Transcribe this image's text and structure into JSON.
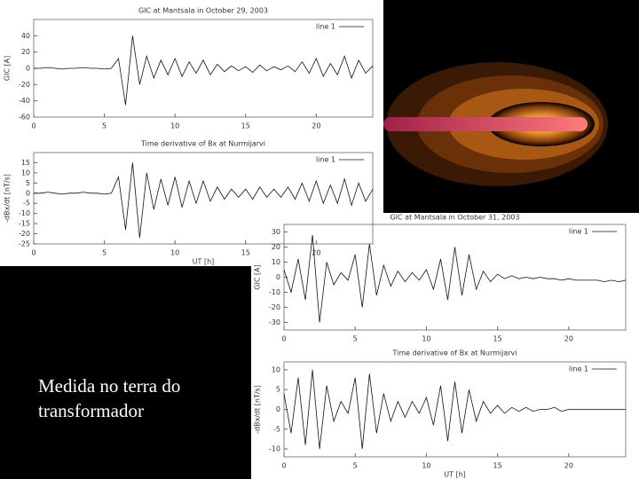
{
  "chart_data": [
    {
      "type": "line",
      "title": "GIC at Mantsala in October 29, 2003",
      "y_label": "GIC [A]",
      "x": [
        0,
        0.5,
        1,
        1.5,
        2,
        2.5,
        3,
        3.5,
        4,
        4.5,
        5,
        5.5,
        6,
        6.5,
        7,
        7.5,
        8,
        8.5,
        9,
        9.5,
        10,
        10.5,
        11,
        11.5,
        12,
        12.5,
        13,
        13.5,
        14,
        14.5,
        15,
        15.5,
        16,
        16.5,
        17,
        17.5,
        18,
        18.5,
        19,
        19.5,
        20,
        20.5,
        21,
        21.5,
        22,
        22.5,
        23,
        23.5,
        24
      ],
      "series": [
        {
          "name": "line 1",
          "color": "#111111",
          "values": [
            0,
            0,
            1,
            0,
            -1,
            0,
            0,
            1,
            0,
            0,
            -1,
            0,
            12,
            -45,
            40,
            -20,
            15,
            -12,
            10,
            -8,
            12,
            -10,
            8,
            -6,
            10,
            -8,
            5,
            -4,
            3,
            -3,
            2,
            -5,
            4,
            -3,
            2,
            -2,
            3,
            -4,
            8,
            -6,
            12,
            -10,
            6,
            -8,
            15,
            -12,
            10,
            -6,
            3
          ]
        }
      ],
      "xlim": [
        0,
        24
      ],
      "xticks": [
        0,
        5,
        10,
        15,
        20
      ],
      "ylim": [
        -60,
        60
      ],
      "yticks": [
        40,
        20,
        0,
        -20,
        -40,
        -60
      ],
      "legend": "upper right"
    },
    {
      "type": "line",
      "title": "Time derivative of Bx at Nurmijarvi",
      "y_label": "-dBx/dt [nT/s]",
      "x_label": "UT [h]",
      "x": [
        0,
        0.5,
        1,
        1.5,
        2,
        2.5,
        3,
        3.5,
        4,
        4.5,
        5,
        5.5,
        6,
        6.5,
        7,
        7.5,
        8,
        8.5,
        9,
        9.5,
        10,
        10.5,
        11,
        11.5,
        12,
        12.5,
        13,
        13.5,
        14,
        14.5,
        15,
        15.5,
        16,
        16.5,
        17,
        17.5,
        18,
        18.5,
        19,
        19.5,
        20,
        20.5,
        21,
        21.5,
        22,
        22.5,
        23,
        23.5,
        24
      ],
      "series": [
        {
          "name": "line 1",
          "color": "#111111",
          "values": [
            0,
            0,
            0.5,
            0,
            -0.5,
            0,
            0,
            0.5,
            0,
            0,
            -0.5,
            0,
            8,
            -18,
            15,
            -22,
            10,
            -8,
            7,
            -6,
            8,
            -7,
            6,
            -5,
            6,
            -4,
            3,
            -3,
            2,
            -2,
            2,
            -3,
            3,
            -2,
            2,
            -2,
            3,
            -3,
            5,
            -4,
            6,
            -5,
            4,
            -5,
            7,
            -6,
            5,
            -4,
            2
          ]
        }
      ],
      "xlim": [
        0,
        24
      ],
      "xticks": [
        0,
        5,
        10,
        15,
        20
      ],
      "ylim": [
        -25,
        20
      ],
      "yticks": [
        15,
        10,
        5,
        0,
        -5,
        -10,
        -15,
        -20,
        -25
      ],
      "legend": "upper right"
    },
    {
      "type": "line",
      "title": "GIC at Mantsala in October 31, 2003",
      "y_label": "GIC [A]",
      "x": [
        0,
        0.5,
        1,
        1.5,
        2,
        2.5,
        3,
        3.5,
        4,
        4.5,
        5,
        5.5,
        6,
        6.5,
        7,
        7.5,
        8,
        8.5,
        9,
        9.5,
        10,
        10.5,
        11,
        11.5,
        12,
        12.5,
        13,
        13.5,
        14,
        14.5,
        15,
        15.5,
        16,
        16.5,
        17,
        17.5,
        18,
        18.5,
        19,
        19.5,
        20,
        20.5,
        21,
        21.5,
        22,
        22.5,
        23,
        23.5,
        24
      ],
      "series": [
        {
          "name": "line 1",
          "color": "#111111",
          "values": [
            5,
            -10,
            12,
            -15,
            28,
            -30,
            10,
            -5,
            3,
            -2,
            15,
            -20,
            22,
            -12,
            8,
            -6,
            4,
            -3,
            3,
            -2,
            5,
            -8,
            12,
            -15,
            20,
            -12,
            15,
            -8,
            4,
            -3,
            2,
            -1,
            1,
            -1,
            0,
            -1,
            0,
            -1,
            -1,
            -2,
            -1,
            -2,
            -2,
            -2,
            -2,
            -3,
            -2,
            -3,
            -2
          ]
        }
      ],
      "xlim": [
        0,
        24
      ],
      "xticks": [
        0,
        5,
        10,
        15,
        20
      ],
      "ylim": [
        -35,
        35
      ],
      "yticks": [
        30,
        20,
        10,
        0,
        -10,
        -20,
        -30
      ],
      "legend": "upper right"
    },
    {
      "type": "line",
      "title": "Time derivative of Bx at Nurmijarvi",
      "y_label": "-dBx/dt [nT/s]",
      "x_label": "UT [h]",
      "x": [
        0,
        0.5,
        1,
        1.5,
        2,
        2.5,
        3,
        3.5,
        4,
        4.5,
        5,
        5.5,
        6,
        6.5,
        7,
        7.5,
        8,
        8.5,
        9,
        9.5,
        10,
        10.5,
        11,
        11.5,
        12,
        12.5,
        13,
        13.5,
        14,
        14.5,
        15,
        15.5,
        16,
        16.5,
        17,
        17.5,
        18,
        18.5,
        19,
        19.5,
        20,
        20.5,
        21,
        21.5,
        22,
        22.5,
        23,
        23.5,
        24
      ],
      "series": [
        {
          "name": "line 1",
          "color": "#111111",
          "values": [
            4,
            -6,
            8,
            -9,
            10,
            -10,
            6,
            -3,
            2,
            -1,
            8,
            -10,
            9,
            -6,
            4,
            -3,
            2,
            -2,
            2,
            -1,
            3,
            -4,
            6,
            -8,
            7,
            -6,
            5,
            -3,
            2,
            -1,
            1,
            -1,
            0.5,
            -0.5,
            0.5,
            -0.5,
            0,
            0,
            0.5,
            -0.5,
            0,
            0,
            0,
            0,
            0,
            0,
            0,
            0,
            0
          ]
        }
      ],
      "xlim": [
        0,
        24
      ],
      "xticks": [
        0,
        5,
        10,
        15,
        20
      ],
      "ylim": [
        -12,
        12
      ],
      "yticks": [
        10,
        5,
        0,
        -5,
        -10
      ],
      "legend": "upper right"
    }
  ],
  "slide": {
    "caption": [
      "Medida no terra do",
      "transformador"
    ]
  }
}
